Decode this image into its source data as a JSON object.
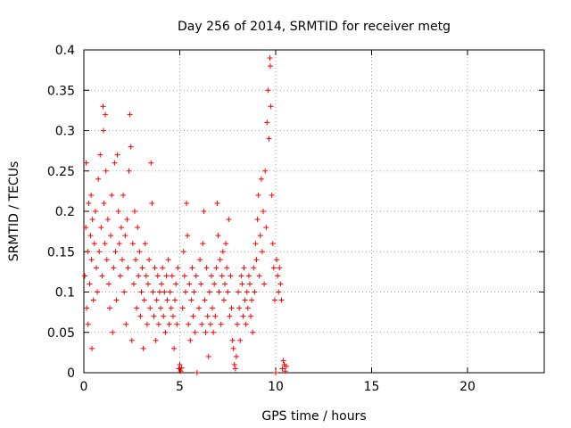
{
  "chart_data": {
    "type": "scatter",
    "title": "Day 256 of 2014, SRMTID for receiver metg",
    "xlabel": "GPS time / hours",
    "ylabel": "SRMTID / TECUs",
    "xlim": [
      0,
      24
    ],
    "ylim": [
      0,
      0.4
    ],
    "x_ticks": [
      0,
      5,
      10,
      15,
      20
    ],
    "x_tick_labels": [
      "0",
      "5",
      "10",
      "15",
      "20"
    ],
    "y_ticks": [
      0,
      0.05,
      0.1,
      0.15,
      0.2,
      0.25,
      0.3,
      0.35,
      0.4
    ],
    "y_tick_labels": [
      "0",
      "0.05",
      "0.1",
      "0.15",
      "0.2",
      "0.25",
      "0.3",
      "0.35",
      "0.4"
    ],
    "grid": true,
    "marker": "+",
    "color": "#ff0000",
    "series": [
      {
        "name": "SRMTID",
        "points": [
          [
            0.05,
            0.12
          ],
          [
            0.1,
            0.18
          ],
          [
            0.12,
            0.26
          ],
          [
            0.15,
            0.08
          ],
          [
            0.2,
            0.15
          ],
          [
            0.22,
            0.06
          ],
          [
            0.25,
            0.21
          ],
          [
            0.3,
            0.11
          ],
          [
            0.35,
            0.17
          ],
          [
            0.38,
            0.22
          ],
          [
            0.4,
            0.14
          ],
          [
            0.42,
            0.03
          ],
          [
            0.45,
            0.19
          ],
          [
            0.5,
            0.09
          ],
          [
            0.55,
            0.16
          ],
          [
            0.6,
            0.2
          ],
          [
            0.65,
            0.13
          ],
          [
            0.7,
            0.1
          ],
          [
            0.75,
            0.24
          ],
          [
            0.8,
            0.15
          ],
          [
            0.85,
            0.27
          ],
          [
            0.9,
            0.18
          ],
          [
            0.95,
            0.12
          ],
          [
            1.0,
            0.33
          ],
          [
            1.02,
            0.3
          ],
          [
            1.05,
            0.21
          ],
          [
            1.1,
            0.16
          ],
          [
            1.12,
            0.32
          ],
          [
            1.15,
            0.25
          ],
          [
            1.2,
            0.14
          ],
          [
            1.25,
            0.19
          ],
          [
            1.3,
            0.11
          ],
          [
            1.35,
            0.08
          ],
          [
            1.4,
            0.17
          ],
          [
            1.45,
            0.22
          ],
          [
            1.5,
            0.05
          ],
          [
            1.55,
            0.13
          ],
          [
            1.6,
            0.26
          ],
          [
            1.65,
            0.15
          ],
          [
            1.7,
            0.09
          ],
          [
            1.75,
            0.27
          ],
          [
            1.8,
            0.2
          ],
          [
            1.85,
            0.16
          ],
          [
            1.9,
            0.12
          ],
          [
            1.95,
            0.18
          ],
          [
            2.0,
            0.14
          ],
          [
            2.05,
            0.22
          ],
          [
            2.1,
            0.1
          ],
          [
            2.15,
            0.17
          ],
          [
            2.2,
            0.06
          ],
          [
            2.25,
            0.19
          ],
          [
            2.3,
            0.13
          ],
          [
            2.35,
            0.25
          ],
          [
            2.4,
            0.32
          ],
          [
            2.45,
            0.28
          ],
          [
            2.5,
            0.04
          ],
          [
            2.55,
            0.16
          ],
          [
            2.6,
            0.11
          ],
          [
            2.65,
            0.2
          ],
          [
            2.7,
            0.14
          ],
          [
            2.75,
            0.08
          ],
          [
            2.8,
            0.18
          ],
          [
            2.85,
            0.12
          ],
          [
            2.9,
            0.15
          ],
          [
            2.95,
            0.07
          ],
          [
            3.0,
            0.1
          ],
          [
            3.05,
            0.13
          ],
          [
            3.1,
            0.03
          ],
          [
            3.15,
            0.09
          ],
          [
            3.2,
            0.16
          ],
          [
            3.25,
            0.12
          ],
          [
            3.3,
            0.06
          ],
          [
            3.35,
            0.11
          ],
          [
            3.4,
            0.14
          ],
          [
            3.45,
            0.08
          ],
          [
            3.5,
            0.26
          ],
          [
            3.55,
            0.21
          ],
          [
            3.6,
            0.1
          ],
          [
            3.65,
            0.07
          ],
          [
            3.7,
            0.13
          ],
          [
            3.75,
            0.04
          ],
          [
            3.8,
            0.09
          ],
          [
            3.85,
            0.12
          ],
          [
            3.9,
            0.06
          ],
          [
            3.95,
            0.1
          ],
          [
            4.0,
            0.08
          ],
          [
            4.05,
            0.11
          ],
          [
            4.1,
            0.13
          ],
          [
            4.15,
            0.07
          ],
          [
            4.2,
            0.1
          ],
          [
            4.25,
            0.05
          ],
          [
            4.3,
            0.12
          ],
          [
            4.35,
            0.09
          ],
          [
            4.4,
            0.14
          ],
          [
            4.45,
            0.06
          ],
          [
            4.5,
            0.1
          ],
          [
            4.55,
            0.08
          ],
          [
            4.6,
            0.12
          ],
          [
            4.65,
            0.07
          ],
          [
            4.7,
            0.03
          ],
          [
            4.75,
            0.09
          ],
          [
            4.8,
            0.11
          ],
          [
            4.85,
            0.06
          ],
          [
            4.9,
            0.13
          ],
          [
            4.95,
            0.005
          ],
          [
            5.0,
            0.01
          ],
          [
            5.05,
            0.002
          ],
          [
            5.1,
            0.006
          ],
          [
            5.15,
            0.08
          ],
          [
            5.2,
            0.15
          ],
          [
            5.25,
            0.12
          ],
          [
            5.3,
            0.1
          ],
          [
            5.35,
            0.21
          ],
          [
            5.4,
            0.17
          ],
          [
            5.45,
            0.06
          ],
          [
            5.5,
            0.11
          ],
          [
            5.55,
            0.04
          ],
          [
            5.6,
            0.09
          ],
          [
            5.65,
            0.13
          ],
          [
            5.7,
            0.07
          ],
          [
            5.75,
            0.1
          ],
          [
            5.8,
            0.05
          ],
          [
            5.85,
            0.12
          ],
          [
            5.9,
            0.0
          ],
          [
            6.0,
            0.08
          ],
          [
            6.05,
            0.14
          ],
          [
            6.1,
            0.11
          ],
          [
            6.15,
            0.06
          ],
          [
            6.2,
            0.16
          ],
          [
            6.25,
            0.2
          ],
          [
            6.3,
            0.09
          ],
          [
            6.35,
            0.05
          ],
          [
            6.4,
            0.13
          ],
          [
            6.45,
            0.07
          ],
          [
            6.5,
            0.02
          ],
          [
            6.55,
            0.1
          ],
          [
            6.6,
            0.06
          ],
          [
            6.65,
            0.12
          ],
          [
            6.7,
            0.08
          ],
          [
            6.75,
            0.05
          ],
          [
            6.8,
            0.11
          ],
          [
            6.85,
            0.07
          ],
          [
            6.9,
            0.13
          ],
          [
            6.95,
            0.21
          ],
          [
            7.0,
            0.17
          ],
          [
            7.05,
            0.1
          ],
          [
            7.1,
            0.14
          ],
          [
            7.15,
            0.06
          ],
          [
            7.2,
            0.12
          ],
          [
            7.25,
            0.15
          ],
          [
            7.3,
            0.09
          ],
          [
            7.35,
            0.11
          ],
          [
            7.4,
            0.16
          ],
          [
            7.45,
            0.13
          ],
          [
            7.5,
            0.1
          ],
          [
            7.55,
            0.19
          ],
          [
            7.6,
            0.07
          ],
          [
            7.65,
            0.12
          ],
          [
            7.7,
            0.08
          ],
          [
            7.75,
            0.04
          ],
          [
            7.8,
            0.03
          ],
          [
            7.85,
            0.01
          ],
          [
            7.9,
            0.005
          ],
          [
            7.95,
            0.02
          ],
          [
            8.0,
            0.06
          ],
          [
            8.05,
            0.1
          ],
          [
            8.1,
            0.08
          ],
          [
            8.15,
            0.04
          ],
          [
            8.2,
            0.12
          ],
          [
            8.25,
            0.11
          ],
          [
            8.3,
            0.07
          ],
          [
            8.35,
            0.13
          ],
          [
            8.4,
            0.09
          ],
          [
            8.45,
            0.06
          ],
          [
            8.5,
            0.1
          ],
          [
            8.55,
            0.08
          ],
          [
            8.6,
            0.12
          ],
          [
            8.65,
            0.11
          ],
          [
            8.7,
            0.07
          ],
          [
            8.75,
            0.09
          ],
          [
            8.8,
            0.05
          ],
          [
            8.85,
            0.13
          ],
          [
            8.9,
            0.1
          ],
          [
            8.95,
            0.16
          ],
          [
            9.0,
            0.14
          ],
          [
            9.05,
            0.19
          ],
          [
            9.1,
            0.22
          ],
          [
            9.15,
            0.12
          ],
          [
            9.2,
            0.17
          ],
          [
            9.25,
            0.24
          ],
          [
            9.3,
            0.15
          ],
          [
            9.35,
            0.2
          ],
          [
            9.4,
            0.11
          ],
          [
            9.45,
            0.25
          ],
          [
            9.5,
            0.18
          ],
          [
            9.55,
            0.31
          ],
          [
            9.6,
            0.35
          ],
          [
            9.65,
            0.29
          ],
          [
            9.7,
            0.39
          ],
          [
            9.72,
            0.38
          ],
          [
            9.75,
            0.33
          ],
          [
            9.8,
            0.22
          ],
          [
            9.85,
            0.16
          ],
          [
            9.9,
            0.13
          ],
          [
            9.95,
            0.09
          ],
          [
            10.0,
            0.0
          ],
          [
            10.05,
            0.14
          ],
          [
            10.1,
            0.12
          ],
          [
            10.15,
            0.1
          ],
          [
            10.2,
            0.13
          ],
          [
            10.25,
            0.11
          ],
          [
            10.3,
            0.09
          ],
          [
            10.35,
            0.005
          ],
          [
            10.4,
            0.015
          ],
          [
            10.45,
            0.01
          ],
          [
            10.5,
            0.002
          ],
          [
            10.55,
            0.008
          ]
        ]
      }
    ]
  }
}
